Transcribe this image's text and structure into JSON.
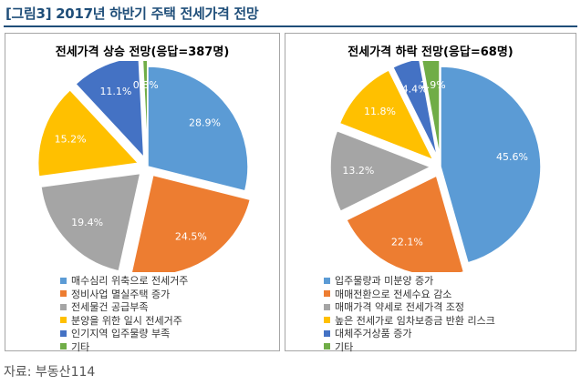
{
  "figure_title": "[그림3] 2017년 하반기 주택 전세가격 전망",
  "source": "자료: 부동산114",
  "chart_data": [
    {
      "type": "pie",
      "title": "전세가격 상승 전망(응답=387명)",
      "unit": "%",
      "categories": [
        "매수심리 위축으로 전세거주",
        "정비사업 멸실주택 증가",
        "전세물건 공급부족",
        "분양을 위한 일시 전세거주",
        "인기지역 입주물량 부족",
        "기타"
      ],
      "values": [
        28.9,
        24.5,
        19.4,
        15.2,
        11.1,
        0.8
      ],
      "labels": [
        "28.9%",
        "24.5%",
        "19.4%",
        "15.2%",
        "11.1%",
        "0.8%"
      ],
      "colors": [
        "#5b9bd5",
        "#ed7d31",
        "#a5a5a5",
        "#ffc000",
        "#4472c4",
        "#70ad47"
      ],
      "legend": "bottom"
    },
    {
      "type": "pie",
      "title": "전세가격 하락 전망(응답=68명)",
      "unit": "%",
      "categories": [
        "입주물량과 미분양 증가",
        "매매전환으로 전세수요 감소",
        "매매가격 약세로 전세가격 조정",
        "높은 전세가로 임차보증금 반환 리스크",
        "대체주거상품 증가",
        "기타"
      ],
      "values": [
        45.6,
        22.1,
        13.2,
        11.8,
        4.4,
        2.9
      ],
      "labels": [
        "45.6%",
        "22.1%",
        "13.2%",
        "11.8%",
        "4.4%",
        "2.9%"
      ],
      "colors": [
        "#5b9bd5",
        "#ed7d31",
        "#a5a5a5",
        "#ffc000",
        "#4472c4",
        "#70ad47"
      ],
      "legend": "bottom"
    }
  ]
}
